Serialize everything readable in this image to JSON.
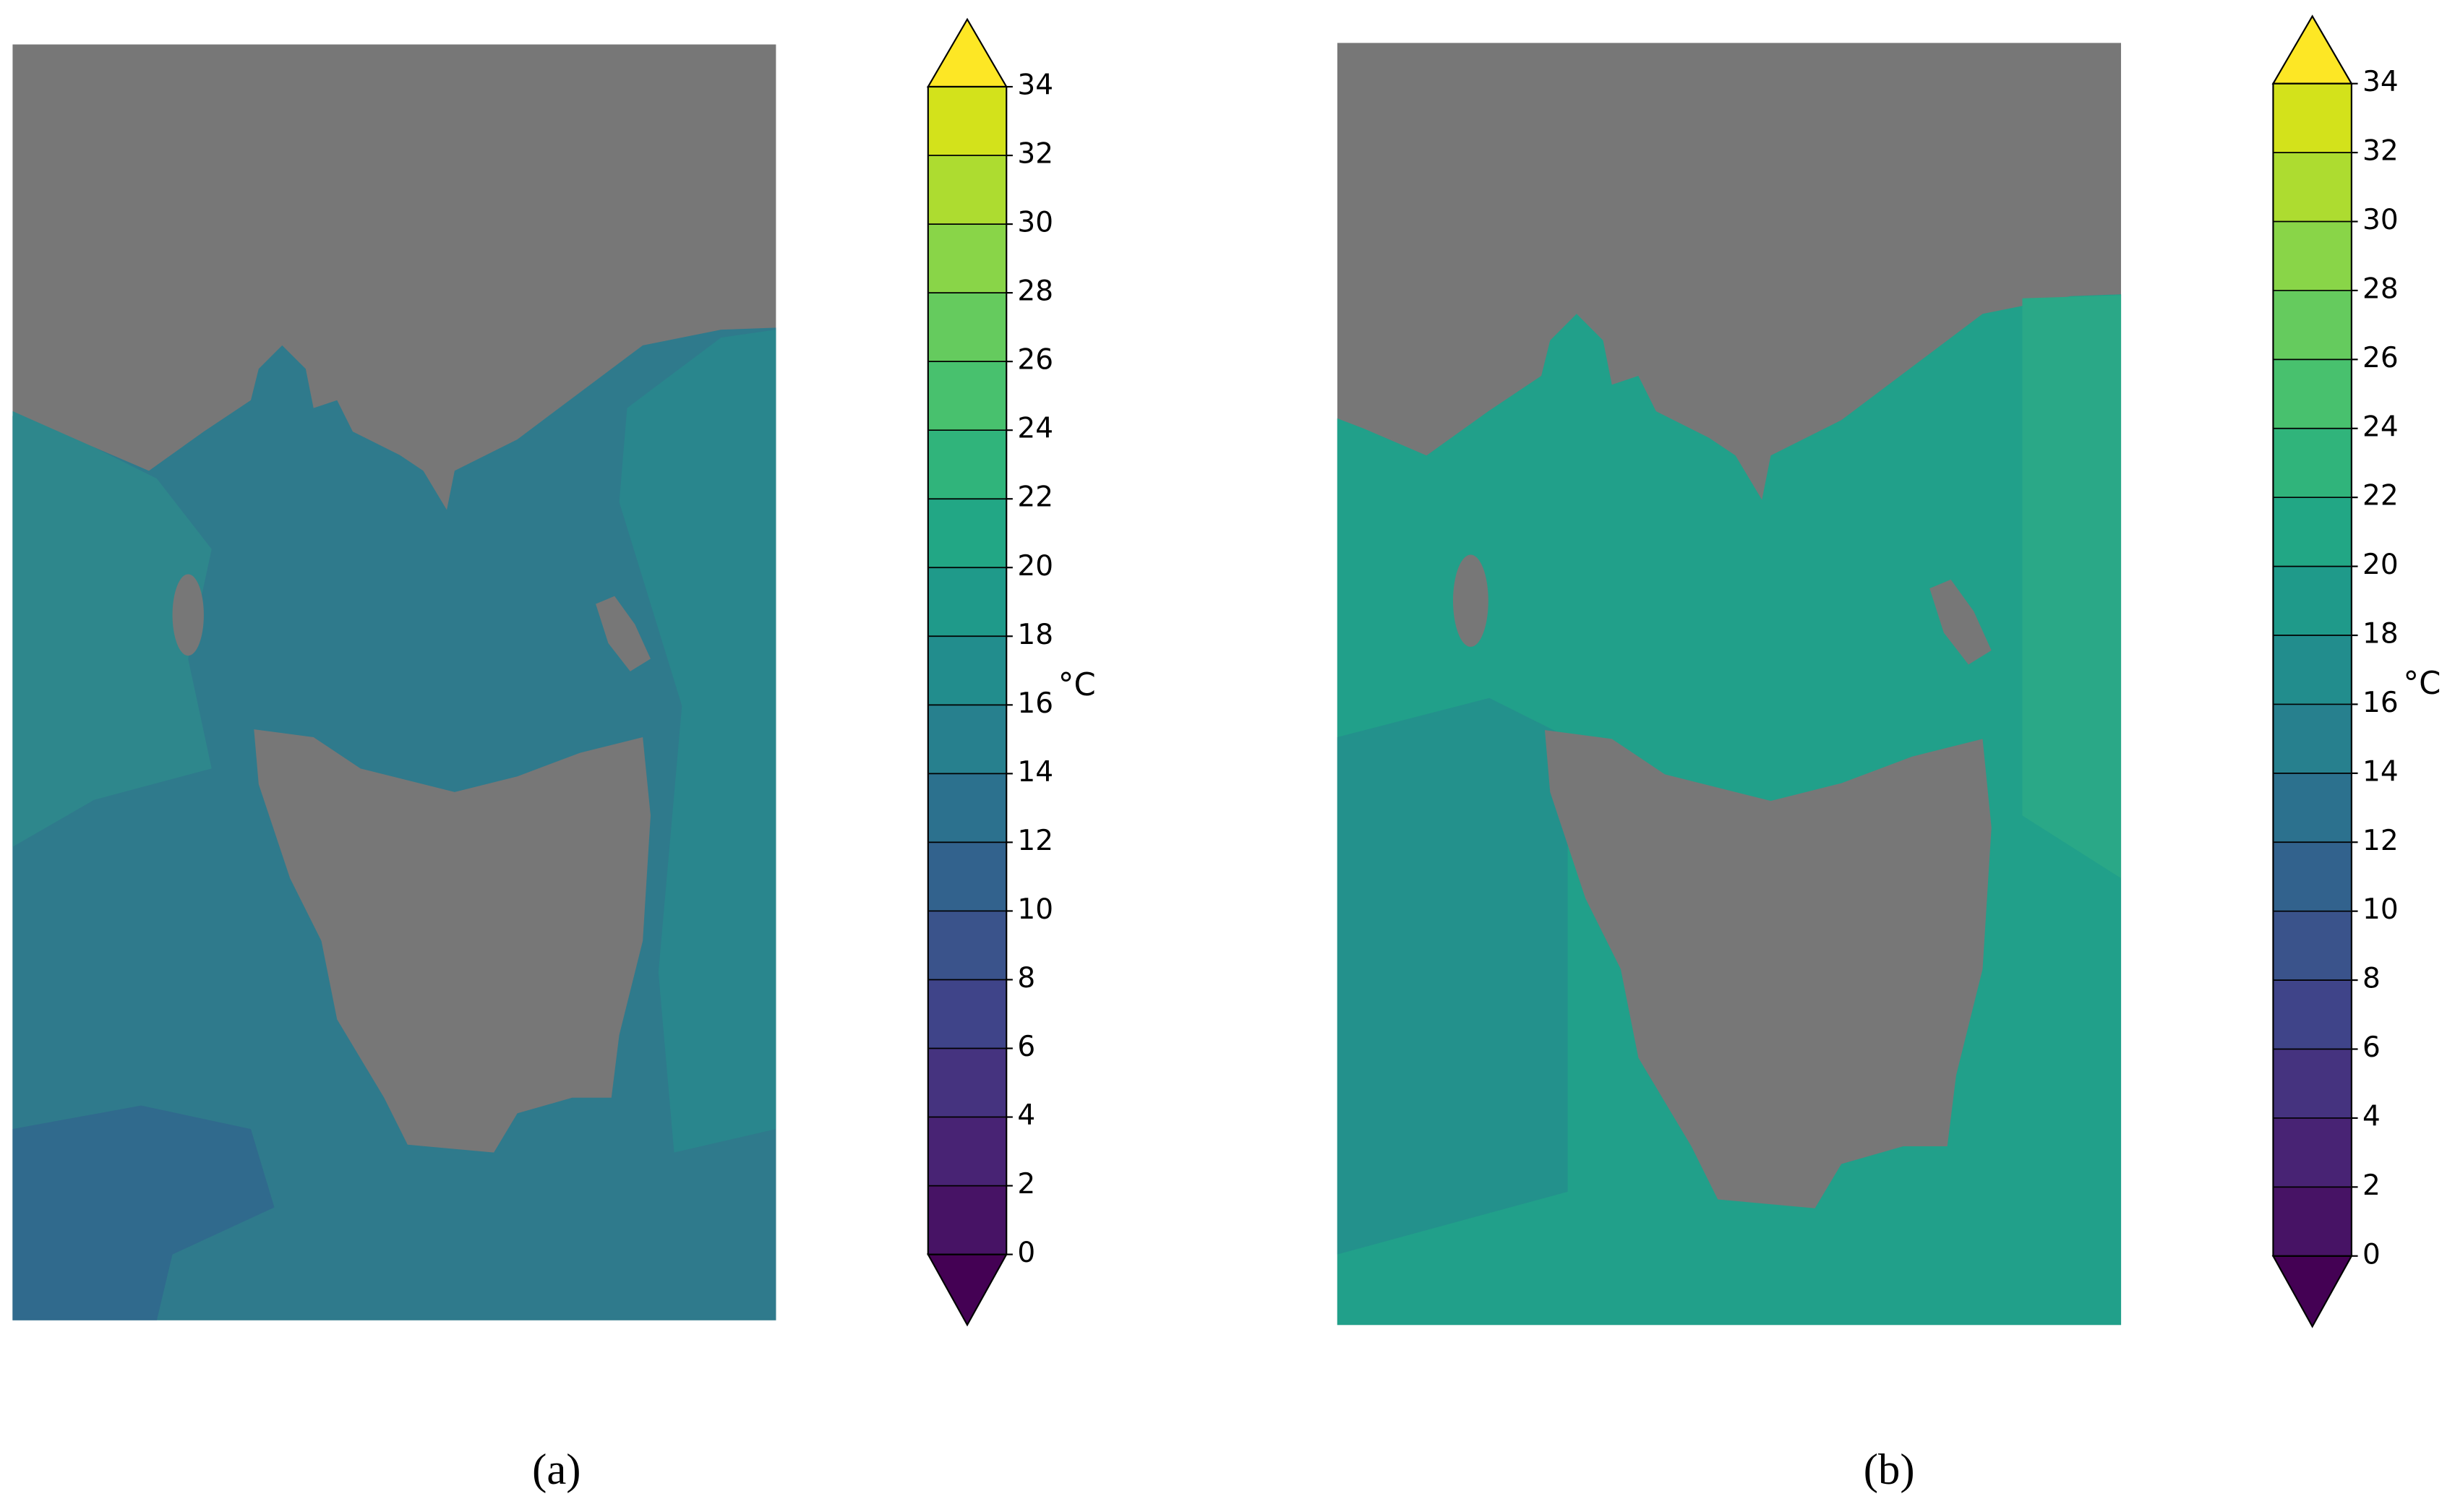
{
  "panels": [
    {
      "caption": "(a)",
      "colorbar": {
        "unit": "°C",
        "lim": [
          0,
          34
        ],
        "ticks": [
          0,
          2,
          4,
          6,
          8,
          10,
          12,
          14,
          16,
          18,
          20,
          22,
          24,
          26,
          28,
          30,
          32,
          34
        ]
      }
    },
    {
      "caption": "(b)",
      "colorbar": {
        "unit": "°C",
        "lim": [
          0,
          34
        ],
        "ticks": [
          0,
          2,
          4,
          6,
          8,
          10,
          12,
          14,
          16,
          18,
          20,
          22,
          24,
          26,
          28,
          30,
          32,
          34
        ]
      }
    }
  ],
  "colormap": {
    "colors": [
      "#471365",
      "#482374",
      "#45337f",
      "#3f4489",
      "#3a538b",
      "#32628d",
      "#2c718e",
      "#27808e",
      "#228d8d",
      "#1f9a8a",
      "#22a785",
      "#30b47b",
      "#48c16e",
      "#65cb5e",
      "#89d548",
      "#addc30",
      "#d3e21b"
    ],
    "under": "#440154",
    "over": "#fde725"
  }
}
